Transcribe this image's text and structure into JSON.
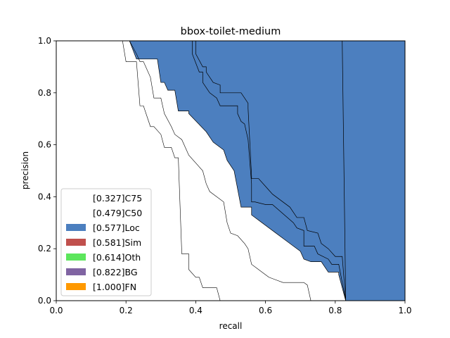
{
  "chart_data": {
    "type": "area",
    "title": "bbox-toilet-medium",
    "xlabel": "recall",
    "ylabel": "precision",
    "xlim": [
      0,
      1
    ],
    "ylim": [
      0,
      1
    ],
    "xticks": [
      "0.0",
      "0.2",
      "0.4",
      "0.6",
      "0.8",
      "1.0"
    ],
    "yticks": [
      "0.0",
      "0.2",
      "0.4",
      "0.6",
      "0.8",
      "1.0"
    ],
    "grid": false,
    "legend_position": "lower-left",
    "series": [
      {
        "name": "[0.327]C75",
        "color": "#ffffff",
        "points": [
          [
            0.19,
            1.0
          ],
          [
            0.2,
            0.92
          ],
          [
            0.23,
            0.92
          ],
          [
            0.24,
            0.75
          ],
          [
            0.25,
            0.75
          ],
          [
            0.27,
            0.67
          ],
          [
            0.28,
            0.67
          ],
          [
            0.3,
            0.64
          ],
          [
            0.31,
            0.59
          ],
          [
            0.33,
            0.59
          ],
          [
            0.34,
            0.55
          ],
          [
            0.35,
            0.55
          ],
          [
            0.36,
            0.18
          ],
          [
            0.38,
            0.18
          ],
          [
            0.38,
            0.12
          ],
          [
            0.4,
            0.09
          ],
          [
            0.41,
            0.09
          ],
          [
            0.42,
            0.05
          ],
          [
            0.46,
            0.05
          ],
          [
            0.47,
            0.0
          ]
        ]
      },
      {
        "name": "[0.479]C50",
        "color": "#ffffff",
        "points": [
          [
            0.21,
            1.0
          ],
          [
            0.23,
            0.95
          ],
          [
            0.24,
            0.92
          ],
          [
            0.25,
            0.92
          ],
          [
            0.27,
            0.86
          ],
          [
            0.28,
            0.78
          ],
          [
            0.3,
            0.78
          ],
          [
            0.31,
            0.72
          ],
          [
            0.33,
            0.67
          ],
          [
            0.34,
            0.64
          ],
          [
            0.36,
            0.62
          ],
          [
            0.38,
            0.56
          ],
          [
            0.4,
            0.53
          ],
          [
            0.42,
            0.5
          ],
          [
            0.43,
            0.45
          ],
          [
            0.44,
            0.42
          ],
          [
            0.46,
            0.4
          ],
          [
            0.48,
            0.38
          ],
          [
            0.49,
            0.3
          ],
          [
            0.5,
            0.26
          ],
          [
            0.52,
            0.25
          ],
          [
            0.54,
            0.22
          ],
          [
            0.55,
            0.2
          ],
          [
            0.56,
            0.14
          ],
          [
            0.58,
            0.12
          ],
          [
            0.6,
            0.1
          ],
          [
            0.61,
            0.09
          ],
          [
            0.63,
            0.08
          ],
          [
            0.65,
            0.07
          ],
          [
            0.67,
            0.07
          ],
          [
            0.69,
            0.07
          ],
          [
            0.71,
            0.07
          ],
          [
            0.72,
            0.06
          ],
          [
            0.73,
            0.0
          ]
        ]
      },
      {
        "name": "[0.577]Loc",
        "color": "#4c7fbf",
        "points": [
          [
            0.21,
            1.0
          ],
          [
            0.23,
            0.93
          ],
          [
            0.29,
            0.93
          ],
          [
            0.3,
            0.84
          ],
          [
            0.31,
            0.84
          ],
          [
            0.32,
            0.81
          ],
          [
            0.34,
            0.81
          ],
          [
            0.35,
            0.73
          ],
          [
            0.38,
            0.73
          ],
          [
            0.38,
            0.72
          ],
          [
            0.43,
            0.65
          ],
          [
            0.45,
            0.61
          ],
          [
            0.48,
            0.58
          ],
          [
            0.49,
            0.54
          ],
          [
            0.51,
            0.5
          ],
          [
            0.52,
            0.43
          ],
          [
            0.53,
            0.36
          ],
          [
            0.56,
            0.36
          ],
          [
            0.56,
            0.33
          ],
          [
            0.59,
            0.3
          ],
          [
            0.61,
            0.28
          ],
          [
            0.63,
            0.26
          ],
          [
            0.66,
            0.23
          ],
          [
            0.68,
            0.21
          ],
          [
            0.7,
            0.19
          ],
          [
            0.71,
            0.16
          ],
          [
            0.73,
            0.15
          ],
          [
            0.76,
            0.15
          ],
          [
            0.77,
            0.13
          ],
          [
            0.78,
            0.11
          ],
          [
            0.81,
            0.11
          ],
          [
            0.81,
            0.1
          ],
          [
            0.83,
            0.0
          ]
        ]
      },
      {
        "name": "[0.581]Sim",
        "color": "#c0504d",
        "points": [
          [
            0.34,
            1.0
          ],
          [
            0.39,
            1.0
          ],
          [
            0.39,
            0.95
          ],
          [
            0.41,
            0.88
          ],
          [
            0.42,
            0.88
          ],
          [
            0.42,
            0.84
          ],
          [
            0.44,
            0.8
          ],
          [
            0.46,
            0.78
          ],
          [
            0.47,
            0.75
          ],
          [
            0.52,
            0.75
          ],
          [
            0.52,
            0.72
          ],
          [
            0.53,
            0.69
          ],
          [
            0.54,
            0.68
          ],
          [
            0.55,
            0.62
          ],
          [
            0.56,
            0.45
          ],
          [
            0.56,
            0.38
          ],
          [
            0.57,
            0.38
          ],
          [
            0.6,
            0.37
          ],
          [
            0.62,
            0.37
          ],
          [
            0.68,
            0.3
          ],
          [
            0.69,
            0.28
          ],
          [
            0.71,
            0.27
          ],
          [
            0.71,
            0.21
          ],
          [
            0.74,
            0.21
          ],
          [
            0.75,
            0.18
          ],
          [
            0.78,
            0.16
          ],
          [
            0.79,
            0.14
          ],
          [
            0.81,
            0.14
          ],
          [
            0.83,
            0.0
          ]
        ]
      },
      {
        "name": "[0.614]Oth",
        "color": "#5ce65c",
        "points": [
          [
            0.34,
            1.0
          ],
          [
            0.4,
            1.0
          ],
          [
            0.4,
            0.95
          ],
          [
            0.42,
            0.9
          ],
          [
            0.43,
            0.9
          ],
          [
            0.43,
            0.88
          ],
          [
            0.45,
            0.84
          ],
          [
            0.47,
            0.83
          ],
          [
            0.47,
            0.8
          ],
          [
            0.53,
            0.8
          ],
          [
            0.55,
            0.76
          ],
          [
            0.55,
            0.74
          ],
          [
            0.56,
            0.48
          ],
          [
            0.56,
            0.47
          ],
          [
            0.58,
            0.47
          ],
          [
            0.6,
            0.44
          ],
          [
            0.62,
            0.41
          ],
          [
            0.67,
            0.36
          ],
          [
            0.69,
            0.32
          ],
          [
            0.71,
            0.32
          ],
          [
            0.72,
            0.27
          ],
          [
            0.75,
            0.26
          ],
          [
            0.76,
            0.22
          ],
          [
            0.78,
            0.2
          ],
          [
            0.8,
            0.17
          ],
          [
            0.82,
            0.17
          ],
          [
            0.83,
            0.0
          ]
        ]
      },
      {
        "name": "[0.822]BG",
        "color": "#8064a2",
        "points": [
          [
            0.34,
            1.0
          ],
          [
            0.82,
            1.0
          ],
          [
            0.83,
            0.0
          ]
        ]
      },
      {
        "name": "[1.000]FN",
        "color": "#ff9900",
        "points": [
          [
            0.82,
            1.0
          ],
          [
            1.0,
            1.0
          ],
          [
            1.0,
            0.0
          ],
          [
            0.83,
            0.0
          ]
        ]
      }
    ]
  }
}
